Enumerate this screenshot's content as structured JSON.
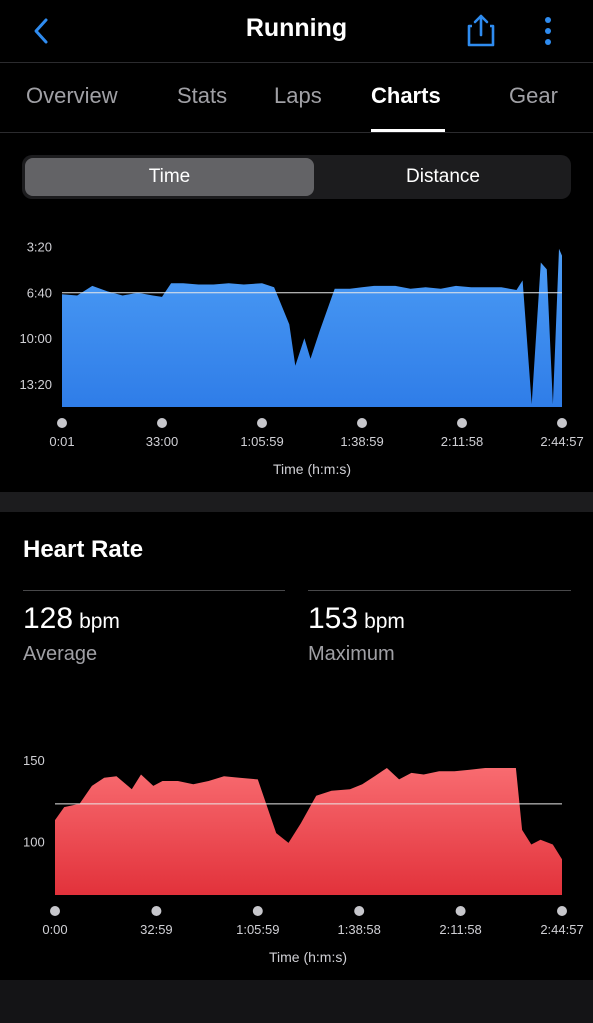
{
  "header": {
    "title": "Running",
    "back_icon": "chevron-left-icon",
    "share_icon": "share-icon",
    "more_icon": "more-vertical-icon",
    "accent_color": "#2f8cf0"
  },
  "tabs": [
    {
      "label": "Overview",
      "active": false
    },
    {
      "label": "Stats",
      "active": false
    },
    {
      "label": "Laps",
      "active": false
    },
    {
      "label": "Charts",
      "active": true
    },
    {
      "label": "Gear",
      "active": false
    }
  ],
  "segmented": {
    "options": [
      "Time",
      "Distance"
    ],
    "selected": "Time"
  },
  "pace_chart": {
    "color": "#3b8ff0",
    "chart_data": {
      "type": "area",
      "title": "",
      "xlabel": "Time (h:m:s)",
      "ylabel": "",
      "y_ticks": [
        "3:20",
        "6:40",
        "10:00",
        "13:20"
      ],
      "y_inverted": true,
      "x_ticks": [
        "0:01",
        "33:00",
        "1:05:59",
        "1:38:59",
        "2:11:58",
        "2:44:57"
      ],
      "average_line": true,
      "x_minutes": [
        0,
        5,
        10,
        15,
        20,
        25,
        30,
        33,
        36,
        40,
        45,
        50,
        55,
        60,
        66,
        70,
        75,
        77,
        80,
        82,
        85,
        90,
        95,
        99,
        103,
        110,
        115,
        120,
        125,
        130,
        135,
        140,
        145,
        150,
        152,
        155,
        158,
        160,
        162,
        164,
        165
      ],
      "pace_min_per_km": [
        6.8,
        6.9,
        6.2,
        6.6,
        6.9,
        6.7,
        6.9,
        7.0,
        6.0,
        6.0,
        6.1,
        6.1,
        6.0,
        6.1,
        6.0,
        6.3,
        9.0,
        12.0,
        10.0,
        11.5,
        9.5,
        6.4,
        6.4,
        6.3,
        6.2,
        6.2,
        6.4,
        6.3,
        6.4,
        6.2,
        6.3,
        6.3,
        6.3,
        6.5,
        5.8,
        14.8,
        4.5,
        5.0,
        14.8,
        3.5,
        4.0
      ]
    }
  },
  "heart_rate": {
    "section_title": "Heart Rate",
    "average": {
      "value": "128",
      "unit": "bpm",
      "label": "Average"
    },
    "maximum": {
      "value": "153",
      "unit": "bpm",
      "label": "Maximum"
    },
    "color": "#f0545b",
    "chart_data": {
      "type": "area",
      "title": "",
      "xlabel": "Time (h:m:s)",
      "ylabel": "",
      "y_ticks": [
        "150",
        "100"
      ],
      "x_ticks": [
        "0:00",
        "32:59",
        "1:05:59",
        "1:38:58",
        "2:11:58",
        "2:44:57"
      ],
      "average_line": true,
      "x_minutes": [
        0,
        3,
        8,
        12,
        16,
        20,
        25,
        28,
        32,
        35,
        40,
        45,
        50,
        55,
        60,
        66,
        72,
        76,
        80,
        85,
        90,
        96,
        100,
        104,
        108,
        112,
        116,
        120,
        125,
        130,
        135,
        140,
        145,
        150,
        152,
        155,
        158,
        162,
        165
      ],
      "bpm": [
        118,
        126,
        128,
        139,
        144,
        145,
        137,
        146,
        139,
        142,
        142,
        140,
        142,
        145,
        144,
        143,
        110,
        104,
        116,
        133,
        136,
        137,
        140,
        145,
        150,
        143,
        147,
        146,
        148,
        148,
        149,
        150,
        150,
        150,
        112,
        103,
        106,
        103,
        94
      ]
    }
  }
}
